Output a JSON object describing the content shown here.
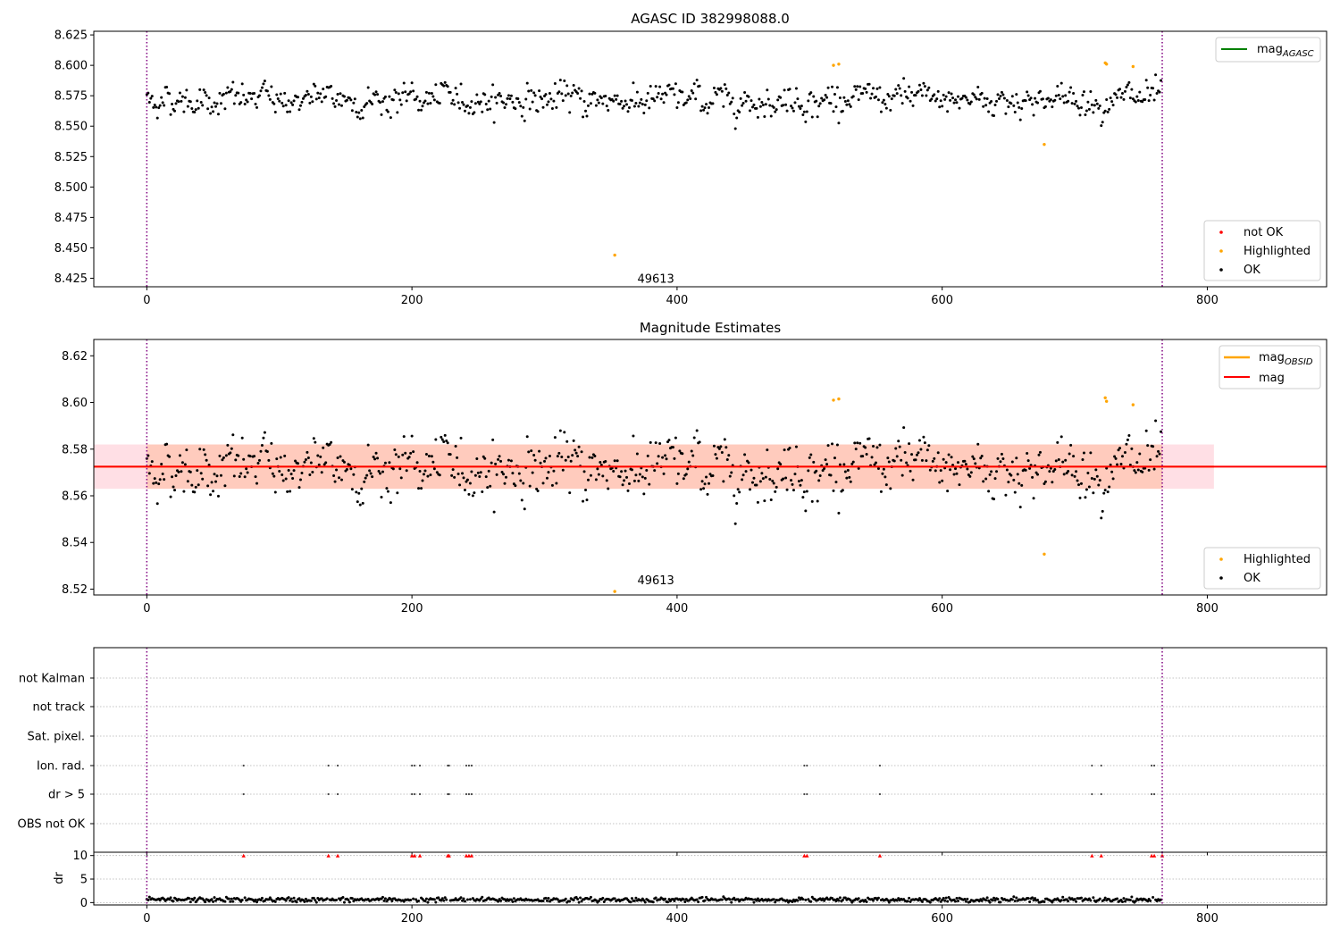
{
  "chart_data": [
    {
      "type": "scatter",
      "title": "AGASC ID 382998088.0",
      "xlim": [
        -40,
        890
      ],
      "ylim": [
        8.418,
        8.628
      ],
      "xticks": [
        0,
        200,
        400,
        600,
        800
      ],
      "yticks": [
        8.425,
        8.45,
        8.475,
        8.5,
        8.525,
        8.55,
        8.575,
        8.6,
        8.625
      ],
      "ytick_labels": [
        "8.425",
        "8.450",
        "8.475",
        "8.500",
        "8.525",
        "8.550",
        "8.575",
        "8.600",
        "8.625"
      ],
      "vlines": [
        0,
        766
      ],
      "annotation": {
        "text": "49613",
        "x": 384,
        "y": 8.425
      },
      "series": [
        {
          "name": "not OK",
          "color": "#ff0000",
          "values": []
        },
        {
          "name": "Highlighted",
          "color": "#ffa500",
          "points": [
            [
              353,
              8.444
            ],
            [
              518,
              8.6
            ],
            [
              522,
              8.601
            ],
            [
              677,
              8.535
            ],
            [
              723,
              8.602
            ],
            [
              724,
              8.601
            ],
            [
              744,
              8.599
            ]
          ]
        },
        {
          "name": "OK",
          "color": "#000000",
          "n_points": 766,
          "y_mean": 8.572,
          "y_spread": 0.009
        }
      ],
      "line_series": [
        {
          "name": "mag_AGASC",
          "color": "#008000"
        }
      ],
      "legend_top": "top-right",
      "legend_bottom": "bottom-right"
    },
    {
      "type": "scatter",
      "title": "Magnitude Estimates",
      "xlim": [
        -40,
        890
      ],
      "ylim": [
        8.5175,
        8.627
      ],
      "xticks": [
        0,
        200,
        400,
        600,
        800
      ],
      "yticks": [
        8.52,
        8.54,
        8.56,
        8.58,
        8.6,
        8.62
      ],
      "ytick_labels": [
        "8.52",
        "8.54",
        "8.56",
        "8.58",
        "8.60",
        "8.62"
      ],
      "vlines": [
        0,
        766
      ],
      "annotation": {
        "text": "49613",
        "x": 384,
        "y": 8.5205
      },
      "mag": 8.5725,
      "mag_band": [
        8.563,
        8.582
      ],
      "mag_obsid_band_x": [
        0,
        766
      ],
      "mag_band_x": [
        -40,
        805
      ],
      "series": [
        {
          "name": "Highlighted",
          "color": "#ffa500",
          "points": [
            [
              353,
              8.519
            ],
            [
              518,
              8.601
            ],
            [
              522,
              8.6015
            ],
            [
              677,
              8.535
            ],
            [
              723,
              8.602
            ],
            [
              724,
              8.6005
            ],
            [
              744,
              8.599
            ]
          ]
        },
        {
          "name": "OK",
          "color": "#000000",
          "n_points": 766,
          "y_mean": 8.572,
          "y_spread": 0.009
        }
      ],
      "line_series": [
        {
          "name": "mag_OBSID",
          "color": "#ffa500"
        },
        {
          "name": "mag",
          "color": "#ff0000"
        }
      ],
      "legend_top": "top-right",
      "legend_bottom": "bottom-right"
    },
    {
      "type": "scatter",
      "title": "",
      "xlim": [
        -40,
        890
      ],
      "xticks": [
        0,
        200,
        400,
        600,
        800
      ],
      "flag_rows": [
        "not Kalman",
        "not track",
        "Sat. pixel.",
        "Ion. rad.",
        "dr > 5",
        "OBS not OK"
      ],
      "flag_points": {
        "Ion. rad.": [
          73,
          137,
          144,
          200,
          202,
          206,
          227,
          228,
          241,
          243,
          245,
          496,
          498,
          553,
          713,
          720,
          758,
          760
        ],
        "dr > 5": [
          73,
          137,
          144,
          200,
          202,
          206,
          227,
          228,
          241,
          243,
          245,
          496,
          498,
          553,
          713,
          720,
          758,
          760
        ]
      },
      "vlines": [
        0,
        766
      ]
    },
    {
      "type": "scatter",
      "title": "",
      "ylabel": "dr",
      "xlim": [
        -40,
        890
      ],
      "ylim": [
        -0.5,
        10.7
      ],
      "xticks": [
        0,
        200,
        400,
        600,
        800
      ],
      "yticks": [
        0,
        5,
        10
      ],
      "ytick_labels": [
        "0",
        "5",
        "10"
      ],
      "clipped_x": [
        73,
        137,
        144,
        200,
        202,
        206,
        227,
        228,
        241,
        243,
        245,
        496,
        498,
        553,
        713,
        720,
        758,
        760,
        766
      ],
      "dr_mean": 0.6,
      "vlines": [
        0,
        766
      ]
    }
  ]
}
